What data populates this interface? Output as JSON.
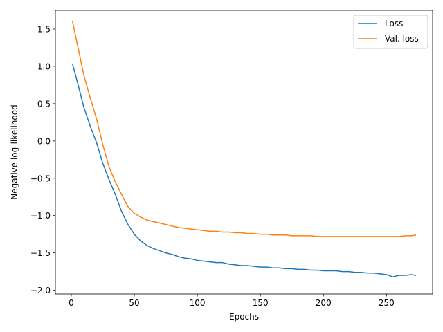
{
  "chart_data": {
    "type": "line",
    "title": "",
    "xlabel": "Epochs",
    "ylabel": "Negative log-likelihood",
    "xlim": [
      -12.6,
      286.6
    ],
    "ylim": [
      -2.05,
      1.75
    ],
    "xticks": [
      0,
      50,
      100,
      150,
      200,
      250
    ],
    "xtick_labels": [
      "0",
      "50",
      "100",
      "150",
      "200",
      "250"
    ],
    "yticks": [
      -2.0,
      -1.5,
      -1.0,
      -0.5,
      0.0,
      0.5,
      1.0,
      1.5
    ],
    "ytick_labels": [
      "−2.0",
      "−1.5",
      "−1.0",
      "−0.5",
      "0.0",
      "0.5",
      "1.0",
      "1.5"
    ],
    "grid": false,
    "legend_position": "top-right",
    "series": [
      {
        "name": "Loss",
        "color": "#1f77b4",
        "x": [
          1,
          5,
          10,
          15,
          20,
          25,
          30,
          35,
          40,
          45,
          50,
          55,
          60,
          65,
          70,
          75,
          80,
          85,
          90,
          95,
          100,
          105,
          110,
          115,
          120,
          125,
          130,
          135,
          140,
          145,
          150,
          155,
          160,
          165,
          170,
          175,
          180,
          185,
          190,
          195,
          200,
          205,
          210,
          215,
          220,
          225,
          230,
          235,
          240,
          245,
          250,
          255,
          260,
          265,
          270,
          273
        ],
        "y": [
          1.03,
          0.78,
          0.45,
          0.2,
          -0.02,
          -0.3,
          -0.52,
          -0.72,
          -0.95,
          -1.12,
          -1.25,
          -1.34,
          -1.4,
          -1.44,
          -1.47,
          -1.5,
          -1.52,
          -1.55,
          -1.57,
          -1.58,
          -1.6,
          -1.61,
          -1.62,
          -1.63,
          -1.63,
          -1.65,
          -1.66,
          -1.67,
          -1.67,
          -1.68,
          -1.69,
          -1.69,
          -1.7,
          -1.7,
          -1.71,
          -1.71,
          -1.72,
          -1.72,
          -1.73,
          -1.73,
          -1.74,
          -1.74,
          -1.74,
          -1.75,
          -1.75,
          -1.76,
          -1.76,
          -1.77,
          -1.77,
          -1.78,
          -1.79,
          -1.82,
          -1.8,
          -1.8,
          -1.79,
          -1.8
        ]
      },
      {
        "name": "Val. loss",
        "color": "#ff7f0e",
        "x": [
          1,
          5,
          10,
          15,
          20,
          25,
          30,
          35,
          40,
          45,
          50,
          55,
          60,
          65,
          70,
          75,
          80,
          85,
          90,
          95,
          100,
          105,
          110,
          115,
          120,
          125,
          130,
          135,
          140,
          145,
          150,
          155,
          160,
          165,
          170,
          175,
          180,
          185,
          190,
          195,
          200,
          205,
          210,
          215,
          220,
          225,
          230,
          235,
          240,
          245,
          250,
          255,
          260,
          265,
          270,
          273
        ],
        "y": [
          1.6,
          1.28,
          0.88,
          0.58,
          0.3,
          -0.05,
          -0.35,
          -0.55,
          -0.72,
          -0.88,
          -0.97,
          -1.02,
          -1.06,
          -1.08,
          -1.1,
          -1.12,
          -1.14,
          -1.16,
          -1.17,
          -1.18,
          -1.19,
          -1.2,
          -1.21,
          -1.21,
          -1.22,
          -1.22,
          -1.23,
          -1.23,
          -1.24,
          -1.24,
          -1.25,
          -1.25,
          -1.26,
          -1.26,
          -1.26,
          -1.27,
          -1.27,
          -1.27,
          -1.27,
          -1.28,
          -1.28,
          -1.28,
          -1.28,
          -1.28,
          -1.28,
          -1.28,
          -1.28,
          -1.28,
          -1.28,
          -1.28,
          -1.28,
          -1.28,
          -1.28,
          -1.27,
          -1.27,
          -1.26
        ]
      }
    ]
  }
}
